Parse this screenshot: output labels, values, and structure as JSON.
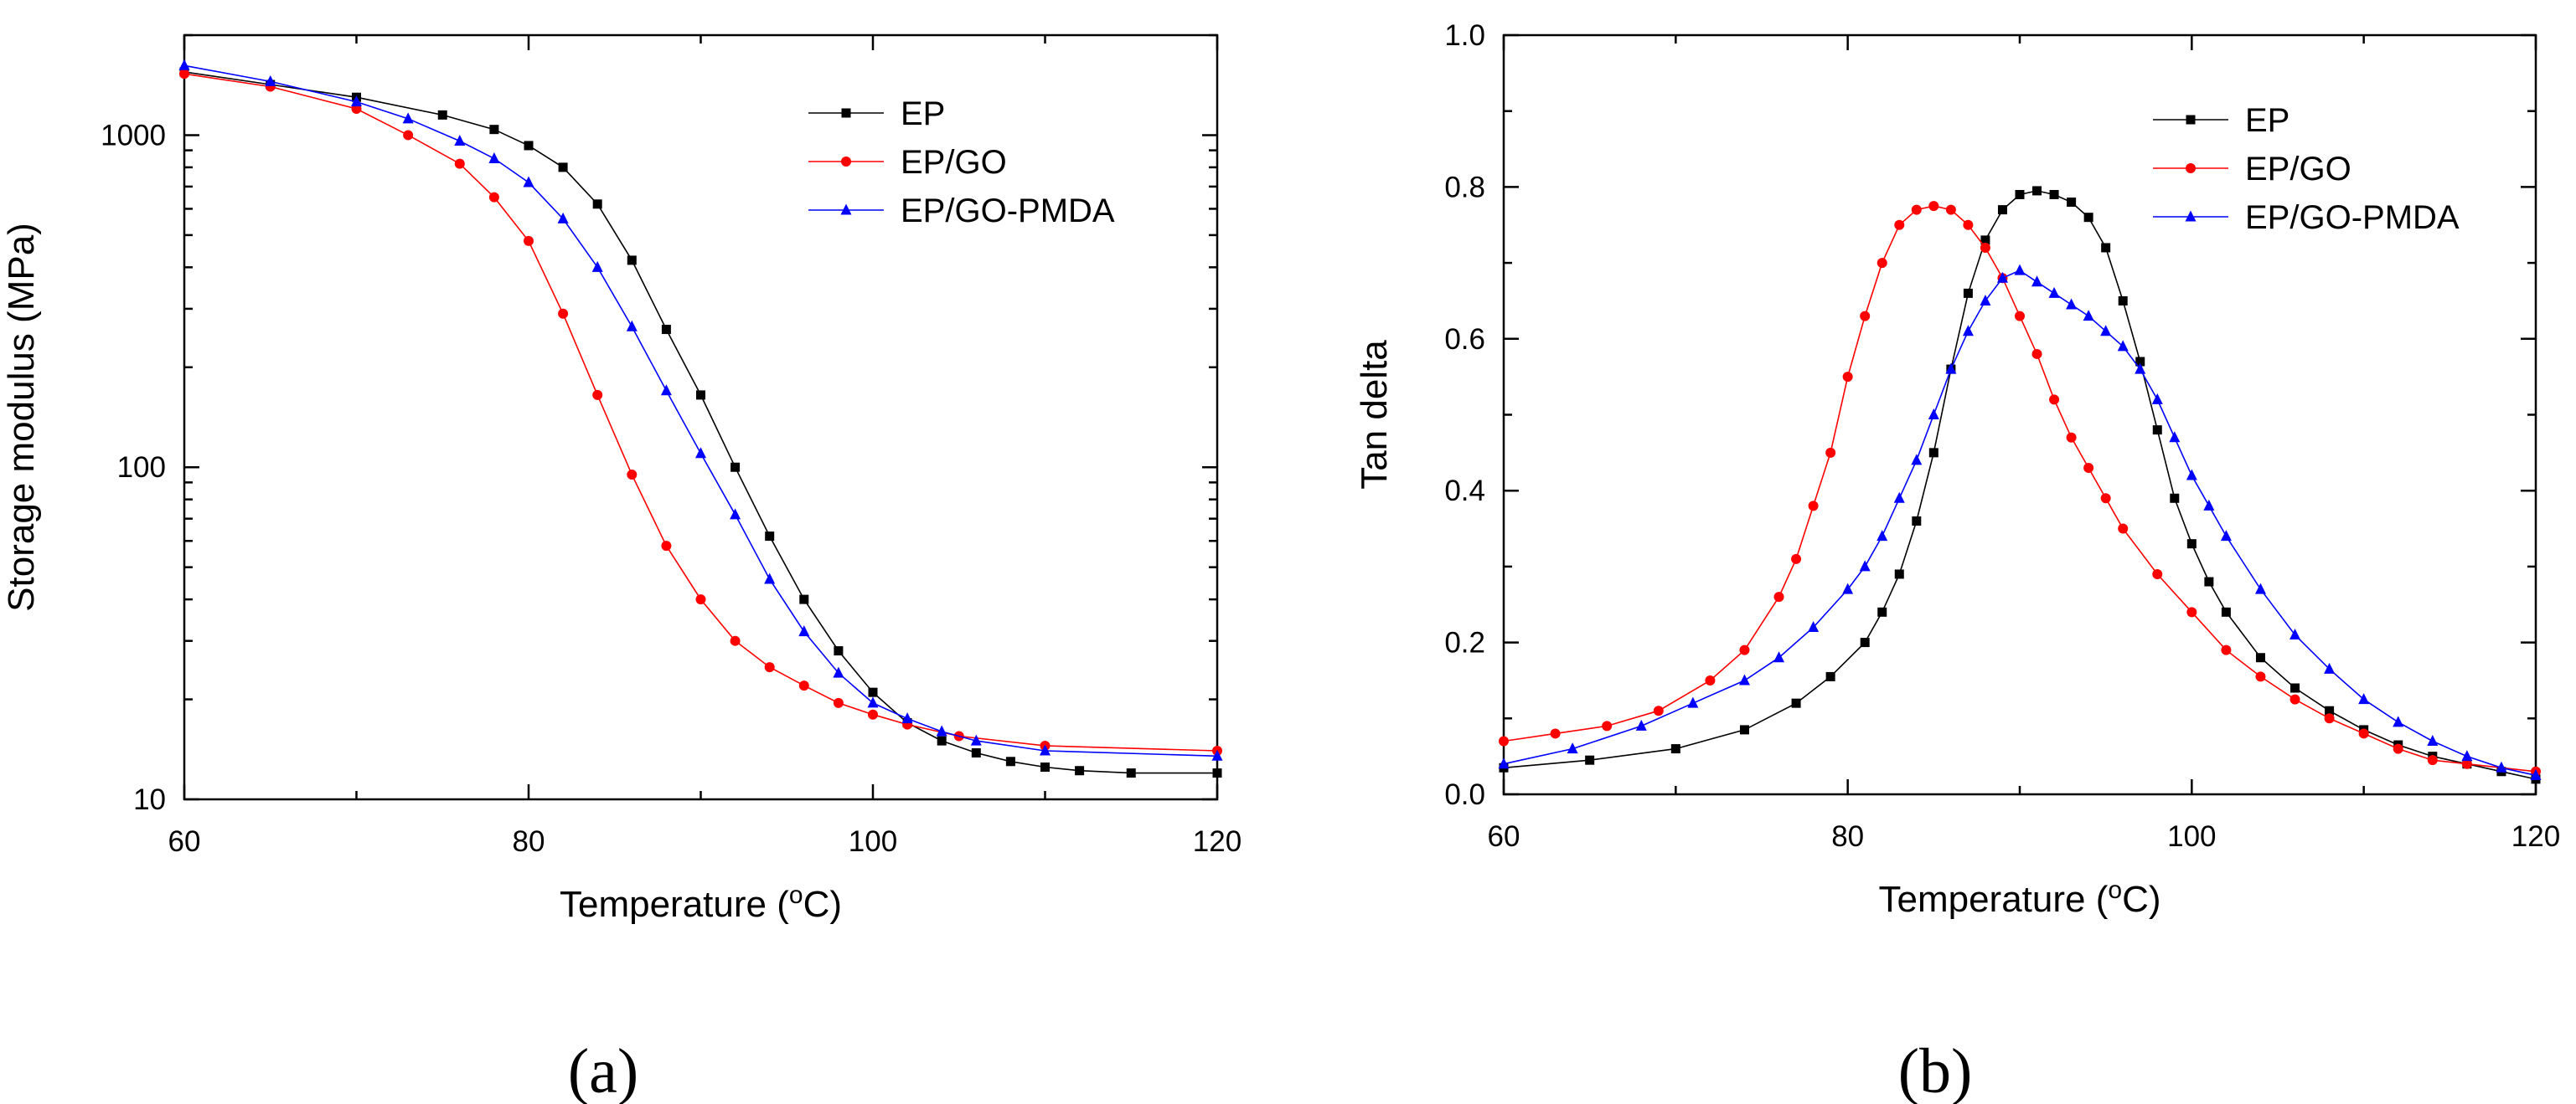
{
  "colors": {
    "EP": "#000000",
    "EP/GO": "#ff0000",
    "EP/GO-PMDA": "#0000ff"
  },
  "chart_data": [
    {
      "type": "line",
      "panel_label": "(a)",
      "xlabel": "Temperature",
      "xunit": "C",
      "ylabel": "Storage modulus (MPa)",
      "xlim": [
        60,
        120
      ],
      "xticks": [
        "60",
        "80",
        "100",
        "120"
      ],
      "ylim": [
        10,
        2000
      ],
      "yscale": "log",
      "yticks": [
        "10",
        "100",
        "1000"
      ],
      "legend": [
        "EP",
        "EP/GO",
        "EP/GO-PMDA"
      ],
      "legend_position": "top-right",
      "series": [
        {
          "name": "EP",
          "marker": "square",
          "color": "#000000",
          "x": [
            60,
            65,
            70,
            75,
            78,
            80,
            82,
            84,
            86,
            88,
            90,
            92,
            94,
            96,
            98,
            100,
            102,
            104,
            106,
            108,
            110,
            112,
            115,
            120
          ],
          "y": [
            1550,
            1420,
            1300,
            1150,
            1040,
            930,
            800,
            620,
            420,
            260,
            165,
            100,
            62,
            40,
            28,
            21,
            17,
            15,
            13.8,
            13,
            12.5,
            12.2,
            12,
            12
          ]
        },
        {
          "name": "EP/GO",
          "marker": "circle",
          "color": "#ff0000",
          "x": [
            60,
            65,
            70,
            73,
            76,
            78,
            80,
            82,
            84,
            86,
            88,
            90,
            92,
            94,
            96,
            98,
            100,
            102,
            105,
            110,
            120
          ],
          "y": [
            1530,
            1400,
            1200,
            1000,
            820,
            650,
            480,
            290,
            165,
            95,
            58,
            40,
            30,
            25,
            22,
            19.5,
            18,
            16.8,
            15.5,
            14.5,
            14
          ]
        },
        {
          "name": "EP/GO-PMDA",
          "marker": "triangle",
          "color": "#0000ff",
          "x": [
            60,
            65,
            70,
            73,
            76,
            78,
            80,
            82,
            84,
            86,
            88,
            90,
            92,
            94,
            96,
            98,
            100,
            102,
            104,
            106,
            110,
            120
          ],
          "y": [
            1620,
            1450,
            1260,
            1120,
            960,
            850,
            720,
            560,
            400,
            265,
            170,
            110,
            72,
            46,
            32,
            24,
            19.5,
            17.5,
            16,
            15,
            14,
            13.5
          ]
        }
      ]
    },
    {
      "type": "line",
      "panel_label": "(b)",
      "xlabel": "Temperature",
      "xunit": "C",
      "ylabel": "Tan delta",
      "xlim": [
        60,
        120
      ],
      "xticks": [
        "60",
        "80",
        "100",
        "120"
      ],
      "ylim": [
        0.0,
        1.0
      ],
      "yticks": [
        "0.0",
        "0.2",
        "0.4",
        "0.6",
        "0.8",
        "1.0"
      ],
      "legend": [
        "EP",
        "EP/GO",
        "EP/GO-PMDA"
      ],
      "legend_position": "top-right",
      "series": [
        {
          "name": "EP",
          "marker": "square",
          "color": "#000000",
          "x": [
            60,
            65,
            70,
            74,
            77,
            79,
            81,
            82,
            83,
            84,
            85,
            86,
            87,
            88,
            89,
            90,
            91,
            92,
            93,
            94,
            95,
            96,
            97,
            98,
            99,
            100,
            101,
            102,
            104,
            106,
            108,
            110,
            112,
            114,
            116,
            118,
            120
          ],
          "y": [
            0.035,
            0.045,
            0.06,
            0.085,
            0.12,
            0.155,
            0.2,
            0.24,
            0.29,
            0.36,
            0.45,
            0.56,
            0.66,
            0.73,
            0.77,
            0.79,
            0.795,
            0.79,
            0.78,
            0.76,
            0.72,
            0.65,
            0.57,
            0.48,
            0.39,
            0.33,
            0.28,
            0.24,
            0.18,
            0.14,
            0.11,
            0.085,
            0.065,
            0.05,
            0.04,
            0.03,
            0.02
          ]
        },
        {
          "name": "EP/GO",
          "marker": "circle",
          "color": "#ff0000",
          "x": [
            60,
            63,
            66,
            69,
            72,
            74,
            76,
            77,
            78,
            79,
            80,
            81,
            82,
            83,
            84,
            85,
            86,
            87,
            88,
            89,
            90,
            91,
            92,
            93,
            94,
            95,
            96,
            98,
            100,
            102,
            104,
            106,
            108,
            110,
            112,
            114,
            116,
            120
          ],
          "y": [
            0.07,
            0.08,
            0.09,
            0.11,
            0.15,
            0.19,
            0.26,
            0.31,
            0.38,
            0.45,
            0.55,
            0.63,
            0.7,
            0.75,
            0.77,
            0.775,
            0.77,
            0.75,
            0.72,
            0.68,
            0.63,
            0.58,
            0.52,
            0.47,
            0.43,
            0.39,
            0.35,
            0.29,
            0.24,
            0.19,
            0.155,
            0.125,
            0.1,
            0.08,
            0.06,
            0.045,
            0.04,
            0.03
          ]
        },
        {
          "name": "EP/GO-PMDA",
          "marker": "triangle",
          "color": "#0000ff",
          "x": [
            60,
            64,
            68,
            71,
            74,
            76,
            78,
            80,
            81,
            82,
            83,
            84,
            85,
            86,
            87,
            88,
            89,
            90,
            91,
            92,
            93,
            94,
            95,
            96,
            97,
            98,
            99,
            100,
            101,
            102,
            104,
            106,
            108,
            110,
            112,
            114,
            116,
            118,
            120
          ],
          "y": [
            0.04,
            0.06,
            0.09,
            0.12,
            0.15,
            0.18,
            0.22,
            0.27,
            0.3,
            0.34,
            0.39,
            0.44,
            0.5,
            0.56,
            0.61,
            0.65,
            0.68,
            0.69,
            0.675,
            0.66,
            0.645,
            0.63,
            0.61,
            0.59,
            0.56,
            0.52,
            0.47,
            0.42,
            0.38,
            0.34,
            0.27,
            0.21,
            0.165,
            0.125,
            0.095,
            0.07,
            0.05,
            0.035,
            0.025
          ]
        }
      ]
    }
  ]
}
